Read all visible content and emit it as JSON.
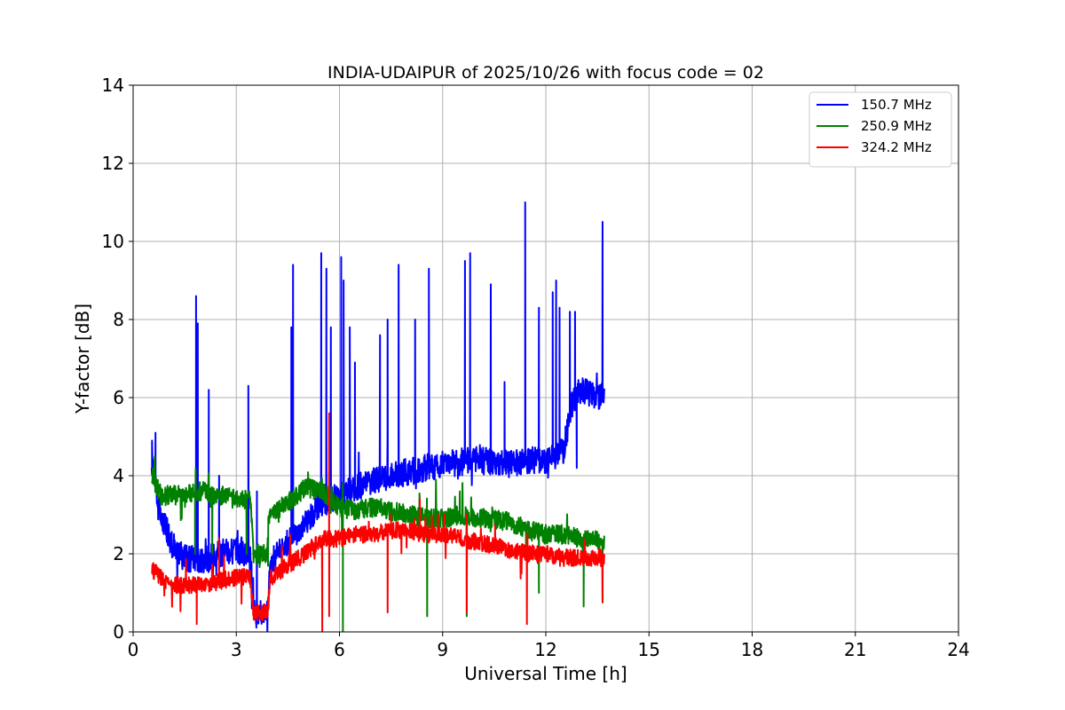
{
  "chart_data": {
    "type": "line",
    "title": "INDIA-UDAIPUR of 2025/10/26 with focus code = 02",
    "xlabel": "Universal Time [h]",
    "ylabel": "Y-factor [dB]",
    "xlim": [
      0,
      24
    ],
    "ylim": [
      0,
      14
    ],
    "xticks": [
      0,
      3,
      6,
      9,
      12,
      15,
      18,
      21,
      24
    ],
    "yticks": [
      0,
      2,
      4,
      6,
      8,
      10,
      12,
      14
    ],
    "grid": true,
    "legend_position": "top-right",
    "series": [
      {
        "name": "150.7 MHz",
        "color": "#0000ff",
        "baseline": [
          [
            0.55,
            4.2
          ],
          [
            0.8,
            3.0
          ],
          [
            1.2,
            2.1
          ],
          [
            1.5,
            1.9
          ],
          [
            2.0,
            1.8
          ],
          [
            2.5,
            2.0
          ],
          [
            3.0,
            2.1
          ],
          [
            3.4,
            2.0
          ],
          [
            3.55,
            0.4
          ],
          [
            3.9,
            0.5
          ],
          [
            4.0,
            1.8
          ],
          [
            4.5,
            2.3
          ],
          [
            5.0,
            2.8
          ],
          [
            5.5,
            3.3
          ],
          [
            6.0,
            3.5
          ],
          [
            6.5,
            3.7
          ],
          [
            7.0,
            3.9
          ],
          [
            7.5,
            4.0
          ],
          [
            8.0,
            4.1
          ],
          [
            8.5,
            4.2
          ],
          [
            9.0,
            4.3
          ],
          [
            10.0,
            4.4
          ],
          [
            11.0,
            4.3
          ],
          [
            11.5,
            4.4
          ],
          [
            12.0,
            4.4
          ],
          [
            12.5,
            4.6
          ],
          [
            12.75,
            5.8
          ],
          [
            13.0,
            6.2
          ],
          [
            13.7,
            6.0
          ]
        ],
        "spikes": [
          [
            0.55,
            4.9
          ],
          [
            0.65,
            5.1
          ],
          [
            1.83,
            8.6
          ],
          [
            1.88,
            7.9
          ],
          [
            2.2,
            6.2
          ],
          [
            2.5,
            4.0
          ],
          [
            3.35,
            6.3
          ],
          [
            3.6,
            3.6
          ],
          [
            4.65,
            9.4
          ],
          [
            4.6,
            7.8
          ],
          [
            5.47,
            9.7
          ],
          [
            5.62,
            9.3
          ],
          [
            5.75,
            7.8
          ],
          [
            6.05,
            9.6
          ],
          [
            6.12,
            9.0
          ],
          [
            6.3,
            7.8
          ],
          [
            6.45,
            6.9
          ],
          [
            7.18,
            7.6
          ],
          [
            7.4,
            8.0
          ],
          [
            7.72,
            9.4
          ],
          [
            8.2,
            8.0
          ],
          [
            8.6,
            9.3
          ],
          [
            9.65,
            9.5
          ],
          [
            9.8,
            9.7
          ],
          [
            10.4,
            8.9
          ],
          [
            10.8,
            6.4
          ],
          [
            11.4,
            11.0
          ],
          [
            11.8,
            8.3
          ],
          [
            12.2,
            8.7
          ],
          [
            12.3,
            9.0
          ],
          [
            12.4,
            8.3
          ],
          [
            12.7,
            8.2
          ],
          [
            12.85,
            8.2
          ],
          [
            13.65,
            10.5
          ]
        ],
        "dips": [
          [
            3.58,
            0.2
          ],
          [
            3.8,
            0.25
          ],
          [
            12.9,
            4.2
          ]
        ],
        "noise": 0.35,
        "seed": 7
      },
      {
        "name": "250.9 MHz",
        "color": "#008000",
        "baseline": [
          [
            0.55,
            4.0
          ],
          [
            0.7,
            3.7
          ],
          [
            0.8,
            3.5
          ],
          [
            1.5,
            3.5
          ],
          [
            2.0,
            3.6
          ],
          [
            2.5,
            3.5
          ],
          [
            3.0,
            3.4
          ],
          [
            3.4,
            3.4
          ],
          [
            3.5,
            2.0
          ],
          [
            3.9,
            2.0
          ],
          [
            3.95,
            3.0
          ],
          [
            4.5,
            3.3
          ],
          [
            5.0,
            3.7
          ],
          [
            5.5,
            3.6
          ],
          [
            6.0,
            3.2
          ],
          [
            6.5,
            3.1
          ],
          [
            7.0,
            3.2
          ],
          [
            7.5,
            3.1
          ],
          [
            8.0,
            3.0
          ],
          [
            8.5,
            2.9
          ],
          [
            9.0,
            2.9
          ],
          [
            9.5,
            3.0
          ],
          [
            10.0,
            2.9
          ],
          [
            10.5,
            2.9
          ],
          [
            11.0,
            2.8
          ],
          [
            11.5,
            2.6
          ],
          [
            12.0,
            2.5
          ],
          [
            12.5,
            2.5
          ],
          [
            13.0,
            2.4
          ],
          [
            13.7,
            2.3
          ]
        ],
        "spikes": [
          [
            5.7,
            4.1
          ],
          [
            6.1,
            3.8
          ],
          [
            9.5,
            3.6
          ]
        ],
        "dips": [
          [
            1.8,
            2.0
          ],
          [
            2.3,
            2.0
          ],
          [
            3.3,
            2.0
          ],
          [
            8.55,
            0.4
          ],
          [
            9.7,
            0.4
          ],
          [
            6.1,
            0.0
          ],
          [
            11.8,
            1.0
          ],
          [
            13.1,
            0.65
          ],
          [
            13.65,
            0.8
          ]
        ],
        "noise": 0.25,
        "seed": 13
      },
      {
        "name": "324.2 MHz",
        "color": "#ff0000",
        "baseline": [
          [
            0.55,
            1.6
          ],
          [
            0.8,
            1.4
          ],
          [
            1.0,
            1.2
          ],
          [
            2.0,
            1.2
          ],
          [
            2.5,
            1.3
          ],
          [
            3.0,
            1.4
          ],
          [
            3.4,
            1.4
          ],
          [
            3.5,
            0.5
          ],
          [
            3.9,
            0.5
          ],
          [
            4.0,
            1.4
          ],
          [
            4.5,
            1.7
          ],
          [
            5.0,
            2.0
          ],
          [
            5.5,
            2.4
          ],
          [
            6.0,
            2.4
          ],
          [
            6.5,
            2.5
          ],
          [
            7.0,
            2.5
          ],
          [
            7.5,
            2.6
          ],
          [
            8.0,
            2.6
          ],
          [
            8.5,
            2.5
          ],
          [
            9.0,
            2.5
          ],
          [
            9.5,
            2.4
          ],
          [
            10.0,
            2.3
          ],
          [
            10.5,
            2.2
          ],
          [
            11.0,
            2.1
          ],
          [
            11.5,
            2.0
          ],
          [
            12.0,
            2.0
          ],
          [
            12.5,
            1.9
          ],
          [
            13.0,
            1.9
          ],
          [
            13.7,
            1.9
          ]
        ],
        "spikes": [
          [
            2.5,
            2.4
          ],
          [
            5.7,
            5.6
          ],
          [
            7.5,
            3.0
          ]
        ],
        "dips": [
          [
            1.85,
            0.2
          ],
          [
            5.5,
            0.0
          ],
          [
            5.7,
            0.4
          ],
          [
            7.4,
            0.5
          ],
          [
            9.7,
            0.5
          ],
          [
            11.45,
            0.2
          ],
          [
            13.65,
            0.75
          ]
        ],
        "noise": 0.22,
        "seed": 29
      }
    ]
  }
}
